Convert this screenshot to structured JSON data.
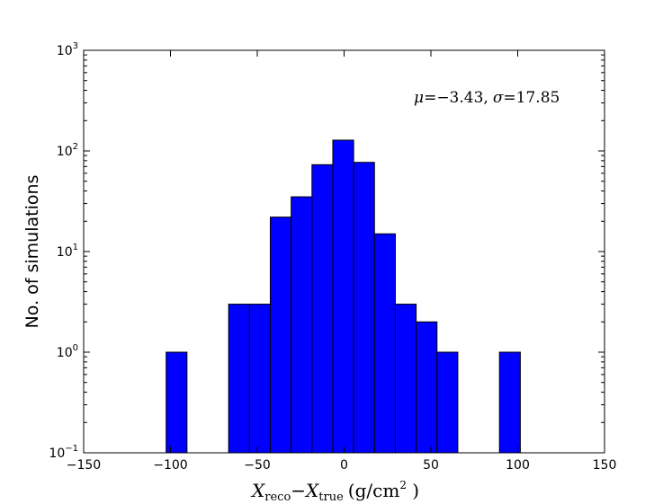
{
  "chart_data": {
    "type": "bar",
    "subtype": "histogram",
    "title": "",
    "xlabel": "X_reco − X_true (g/cm²)",
    "ylabel": "No. of simulations",
    "xlim": [
      -150,
      150
    ],
    "ylim": [
      0.1,
      1000
    ],
    "yscale": "log",
    "grid": false,
    "bar_color": "#0000ff",
    "x_ticks": [
      -150,
      -100,
      -50,
      0,
      50,
      100,
      150
    ],
    "y_ticks": [
      {
        "base": "10",
        "exp": "-1"
      },
      {
        "base": "10",
        "exp": "0"
      },
      {
        "base": "10",
        "exp": "1"
      },
      {
        "base": "10",
        "exp": "2"
      },
      {
        "base": "10",
        "exp": "3"
      }
    ],
    "bins": [
      {
        "x0": -102.5,
        "x1": -90.5,
        "count": 1
      },
      {
        "x0": -66.5,
        "x1": -54.5,
        "count": 3
      },
      {
        "x0": -54.5,
        "x1": -42.5,
        "count": 3
      },
      {
        "x0": -42.5,
        "x1": -30.5,
        "count": 22
      },
      {
        "x0": -30.5,
        "x1": -18.5,
        "count": 35
      },
      {
        "x0": -18.5,
        "x1": -6.5,
        "count": 73
      },
      {
        "x0": -6.5,
        "x1": 5.5,
        "count": 128
      },
      {
        "x0": 5.5,
        "x1": 17.5,
        "count": 77
      },
      {
        "x0": 17.5,
        "x1": 29.5,
        "count": 15
      },
      {
        "x0": 29.5,
        "x1": 41.5,
        "count": 3
      },
      {
        "x0": 41.5,
        "x1": 53.5,
        "count": 2
      },
      {
        "x0": 53.5,
        "x1": 65.5,
        "count": 1
      },
      {
        "x0": 89.5,
        "x1": 101.5,
        "count": 1
      }
    ],
    "annotation": {
      "mu_symbol": "μ",
      "eq": "=",
      "mu_value": "−3.43,",
      "sigma_symbol": "σ",
      "sigma_value": "17.85"
    },
    "xlabel_parts": {
      "x1": "X",
      "sub1": "reco",
      "minus": "−",
      "x2": "X",
      "sub2": "true",
      "unit_open": "(g/cm",
      "unit_exp": "2",
      "unit_close": " )"
    }
  }
}
